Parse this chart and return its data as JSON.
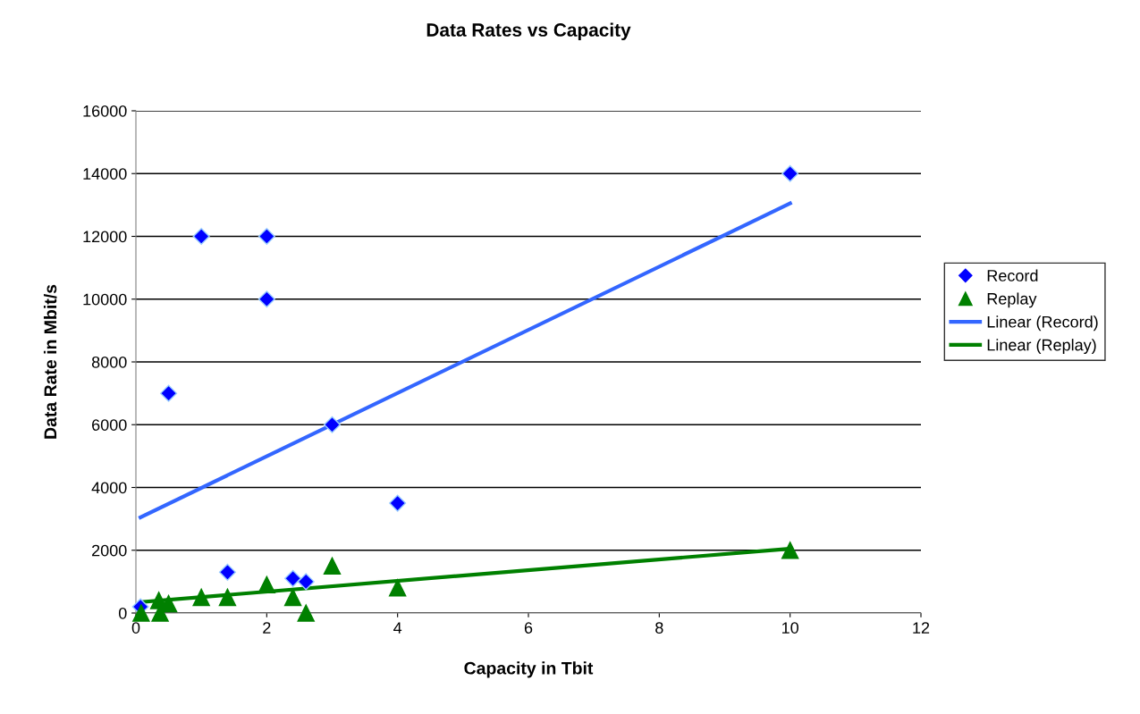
{
  "chart_data": {
    "type": "scatter",
    "title": "Data Rates vs Capacity",
    "xlabel": "Capacity in Tbit",
    "ylabel": "Data Rate in Mbit/s",
    "xlim": [
      0,
      12
    ],
    "xticks": [
      0,
      2,
      4,
      6,
      8,
      10,
      12
    ],
    "ylim": [
      0,
      16000
    ],
    "yticks": [
      0,
      2000,
      4000,
      6000,
      8000,
      10000,
      12000,
      14000,
      16000
    ],
    "grid": "y",
    "legend": "right",
    "series": [
      {
        "name": "Record",
        "type": "scatter",
        "marker": "diamond",
        "color": "#0000ff",
        "x": [
          0.07,
          0.5,
          1,
          1.4,
          2,
          2,
          2.4,
          2.6,
          3,
          4,
          10
        ],
        "values": [
          200,
          7000,
          12000,
          1300,
          12000,
          10000,
          1100,
          1000,
          6000,
          3500,
          14000
        ]
      },
      {
        "name": "Replay",
        "type": "scatter",
        "marker": "triangle",
        "color": "#008000",
        "x": [
          0.08,
          0.35,
          0.37,
          0.5,
          1,
          1.4,
          2,
          2.4,
          2.6,
          3,
          4,
          10
        ],
        "values": [
          0,
          400,
          0,
          300,
          500,
          500,
          900,
          500,
          0,
          1500,
          800,
          2000
        ]
      },
      {
        "name": "Linear (Record)",
        "type": "line",
        "marker": "none",
        "color": "#3366ff",
        "x": [
          0.07,
          10
        ],
        "values": [
          3050,
          13050
        ]
      },
      {
        "name": "Linear (Replay)",
        "type": "line",
        "marker": "none",
        "color": "#008000",
        "x": [
          0.07,
          10
        ],
        "values": [
          350,
          2050
        ]
      }
    ]
  }
}
